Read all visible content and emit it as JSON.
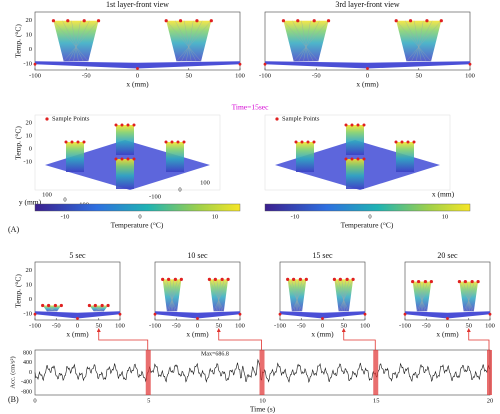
{
  "panel_a": {
    "label": "(A)",
    "time_label": "Time=15sec",
    "front_views": [
      {
        "title": "1st layer-front view",
        "y_label": "Temp. (°C)",
        "y_ticks": [
          "20",
          "10",
          "0",
          "-10"
        ],
        "x_ticks": [
          "-100",
          "-50",
          "0",
          "50",
          "100"
        ],
        "x_label": "x (mm)"
      },
      {
        "title": "3rd layer-front view",
        "x_ticks": [
          "-100",
          "-50",
          "0",
          "50",
          "100"
        ],
        "x_label": "x (mm)"
      }
    ],
    "iso_views": [
      {
        "legend": "Sample Points",
        "z_label": "Temp. (°C)",
        "z_ticks": [
          "20",
          "10",
          "0",
          "-10"
        ],
        "y_ticks": [
          "100",
          "0",
          "-100"
        ],
        "x_ticks": [
          "-100",
          "0",
          "100"
        ],
        "y_label": "y (mm)"
      },
      {
        "legend": "Sample Points",
        "x_label": "x (mm)"
      }
    ],
    "colorbars": [
      {
        "ticks": [
          "-10",
          "0",
          "10"
        ],
        "label": "Temperature (°C)"
      },
      {
        "ticks": [
          "-10",
          "0",
          "10"
        ],
        "label": "Temperature (°C)"
      }
    ]
  },
  "panel_b": {
    "label": "(B)",
    "plots": [
      {
        "title": "5 sec",
        "y_label": "Temp. (°C)",
        "y_ticks": [
          "20",
          "10",
          "0",
          "-10"
        ],
        "x_ticks": [
          "-100",
          "-50",
          "0",
          "50",
          "100"
        ],
        "x_label": "x (mm)"
      },
      {
        "title": "10 sec",
        "x_ticks": [
          "-100",
          "-50",
          "0",
          "50",
          "100"
        ],
        "x_label": "x (mm)"
      },
      {
        "title": "15 sec",
        "x_ticks": [
          "-100",
          "-50",
          "0",
          "50",
          "100"
        ],
        "x_label": "x (mm)"
      },
      {
        "title": "20 sec",
        "x_ticks": [
          "-100",
          "-50",
          "0",
          "50",
          "100"
        ],
        "x_label": "x (mm)"
      }
    ],
    "acc": {
      "y_label": "Acc. (cm/s²)",
      "y_ticks": [
        "800",
        "400",
        "0",
        "-400",
        "-800"
      ],
      "x_ticks": [
        "0",
        "5",
        "10",
        "15",
        "20"
      ],
      "x_label": "Time (s)",
      "annotation": "Max=686.8"
    }
  }
}
